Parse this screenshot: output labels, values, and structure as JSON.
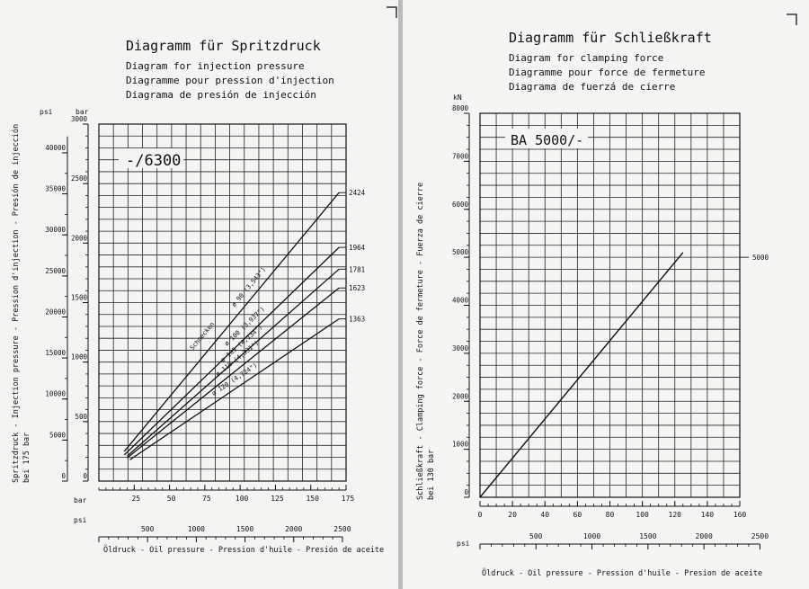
{
  "left_page": {
    "title_lines": [
      "Diagramm für Spritzdruck",
      "Diagram for injection pressure",
      "Diagramme pour pression d'injection",
      "Diagrama de presión de injección"
    ],
    "model_label": "-/6300",
    "y_axis_title": "Spritzdruck - Injection pressure - Pression d'injection - Presión de injección",
    "y_axis_subtitle": "bei 175 bar",
    "y_unit_bar": "bar",
    "y_unit_psi": "psi",
    "x_unit_bar": "bar",
    "x_unit_psi": "psi",
    "x_axis_title": "Öldruck - Oil pressure - Pression d'huile - Presión de aceite",
    "screw_header": "Schnecken"
  },
  "right_page": {
    "title_lines": [
      "Diagramm für Schließkraft",
      "Diagram for clamping force",
      "Diagramme pour force de fermeture",
      "Diagrama de fuerzá de cierre"
    ],
    "model_label": "BA 5000/-",
    "y_axis_title": "Schließkraft - Clamping force - Force de fermeture - Fuerza de cierre",
    "y_axis_subtitle": "bei 130 bar",
    "y_unit": "kN",
    "x_unit_psi": "psi",
    "x_axis_title": "Öldruck - Oil pressure - Pression d'huile - Presion de aceite"
  },
  "chart_data": [
    {
      "type": "line",
      "y_ticks_bar": [
        "0",
        "500",
        "1000",
        "1500",
        "2000",
        "2500",
        "3000"
      ],
      "y_ticks_psi": [
        "0",
        "5000",
        "10000",
        "15000",
        "20000",
        "25000",
        "30000",
        "35000",
        "40000"
      ],
      "x_ticks_bar": [
        "25",
        "50",
        "75",
        "100",
        "125",
        "150",
        "175"
      ],
      "x_ticks_psi": [
        "500",
        "1000",
        "1500",
        "2000",
        "2500"
      ],
      "xlim": [
        0,
        175
      ],
      "ylim": [
        0,
        3000
      ],
      "grid": true,
      "series": [
        {
          "name": "ø 90 (3,543\")",
          "end_label": "2424",
          "x": [
            18,
            170
          ],
          "y": [
            250,
            2424
          ]
        },
        {
          "name": "ø 100 (3,937\")",
          "end_label": "1964",
          "x": [
            18,
            170
          ],
          "y": [
            220,
            1964
          ]
        },
        {
          "name": "ø 105 (4,134\")",
          "end_label": "1781",
          "x": [
            20,
            170
          ],
          "y": [
            210,
            1781
          ]
        },
        {
          "name": "ø 110 (4,331\")",
          "end_label": "1623",
          "x": [
            20,
            170
          ],
          "y": [
            195,
            1623
          ]
        },
        {
          "name": "ø 120 (4,724\")",
          "end_label": "1363",
          "x": [
            22,
            170
          ],
          "y": [
            180,
            1363
          ]
        }
      ]
    },
    {
      "type": "line",
      "y_ticks": [
        "0",
        "1000",
        "2000",
        "3000",
        "4000",
        "5000",
        "6000",
        "7000",
        "8000"
      ],
      "x_ticks_bar": [
        "0",
        "20",
        "40",
        "60",
        "80",
        "100",
        "120",
        "140",
        "160"
      ],
      "x_ticks_psi": [
        "500",
        "1000",
        "1500",
        "2000",
        "2500"
      ],
      "xlim": [
        0,
        160
      ],
      "ylim": [
        0,
        8000
      ],
      "grid": true,
      "ref_label": "5000",
      "series": [
        {
          "x": [
            0,
            125
          ],
          "y": [
            0,
            5100
          ]
        }
      ]
    }
  ]
}
